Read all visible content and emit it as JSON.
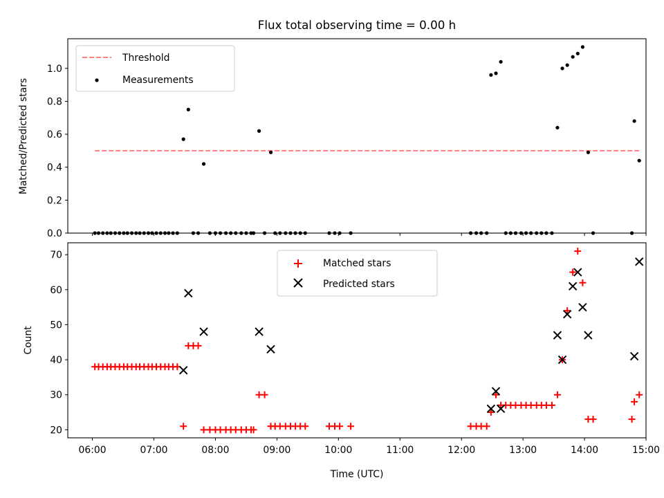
{
  "chart_data": [
    {
      "type": "scatter",
      "title": "Flux total observing time = 0.00 h",
      "xlabel": "",
      "ylabel": "Matched/Predicted stars",
      "xlim": [
        5.6,
        15.0
      ],
      "ylim": [
        0.0,
        1.18
      ],
      "yticks": [
        0.0,
        0.2,
        0.4,
        0.6,
        0.8,
        1.0
      ],
      "ytick_labels": [
        "0.0",
        "0.2",
        "0.4",
        "0.6",
        "0.8",
        "1.0"
      ],
      "threshold": {
        "name": "Threshold",
        "y": 0.5,
        "x": [
          6.04,
          14.9
        ],
        "color": "#ff7f7f",
        "style": "dashed"
      },
      "legend_position": "upper left",
      "series": [
        {
          "name": "Measurements",
          "color": "#000000",
          "marker": "dot",
          "points": [
            [
              6.04,
              0.0
            ],
            [
              6.1,
              0.0
            ],
            [
              6.17,
              0.0
            ],
            [
              6.24,
              0.0
            ],
            [
              6.3,
              0.0
            ],
            [
              6.37,
              0.0
            ],
            [
              6.44,
              0.0
            ],
            [
              6.51,
              0.0
            ],
            [
              6.57,
              0.0
            ],
            [
              6.64,
              0.0
            ],
            [
              6.71,
              0.0
            ],
            [
              6.77,
              0.0
            ],
            [
              6.84,
              0.0
            ],
            [
              6.91,
              0.0
            ],
            [
              6.97,
              0.0
            ],
            [
              7.04,
              0.0
            ],
            [
              7.11,
              0.0
            ],
            [
              7.18,
              0.0
            ],
            [
              7.24,
              0.0
            ],
            [
              7.31,
              0.0
            ],
            [
              7.38,
              0.0
            ],
            [
              7.48,
              0.57
            ],
            [
              7.56,
              0.75
            ],
            [
              7.64,
              0.0
            ],
            [
              7.72,
              0.0
            ],
            [
              7.81,
              0.42
            ],
            [
              7.91,
              0.0
            ],
            [
              8.0,
              0.0
            ],
            [
              8.08,
              0.0
            ],
            [
              8.17,
              0.0
            ],
            [
              8.25,
              0.0
            ],
            [
              8.33,
              0.0
            ],
            [
              8.42,
              0.0
            ],
            [
              8.5,
              0.0
            ],
            [
              8.58,
              0.0
            ],
            [
              8.62,
              0.0
            ],
            [
              8.71,
              0.62
            ],
            [
              8.8,
              0.0
            ],
            [
              8.9,
              0.49
            ],
            [
              8.97,
              0.0
            ],
            [
              9.05,
              0.0
            ],
            [
              9.14,
              0.0
            ],
            [
              9.22,
              0.0
            ],
            [
              9.3,
              0.0
            ],
            [
              9.38,
              0.0
            ],
            [
              9.46,
              0.0
            ],
            [
              9.85,
              0.0
            ],
            [
              9.94,
              0.0
            ],
            [
              10.02,
              0.0
            ],
            [
              10.2,
              0.0
            ],
            [
              12.15,
              0.0
            ],
            [
              12.24,
              0.0
            ],
            [
              12.32,
              0.0
            ],
            [
              12.41,
              0.0
            ],
            [
              12.48,
              0.96
            ],
            [
              12.56,
              0.97
            ],
            [
              12.64,
              1.04
            ],
            [
              12.72,
              0.0
            ],
            [
              12.8,
              0.0
            ],
            [
              12.88,
              0.0
            ],
            [
              12.97,
              0.0
            ],
            [
              13.05,
              0.0
            ],
            [
              13.13,
              0.0
            ],
            [
              13.22,
              0.0
            ],
            [
              13.3,
              0.0
            ],
            [
              13.38,
              0.0
            ],
            [
              13.47,
              0.0
            ],
            [
              13.56,
              0.64
            ],
            [
              13.64,
              1.0
            ],
            [
              13.72,
              1.02
            ],
            [
              13.81,
              1.07
            ],
            [
              13.89,
              1.09
            ],
            [
              13.97,
              1.13
            ],
            [
              14.06,
              0.49
            ],
            [
              14.14,
              0.0
            ],
            [
              14.77,
              0.0
            ],
            [
              14.81,
              0.68
            ],
            [
              14.89,
              0.44
            ]
          ]
        }
      ]
    },
    {
      "type": "scatter",
      "title": "",
      "xlabel": "Time (UTC)",
      "ylabel": "Count",
      "xlim": [
        5.6,
        15.0
      ],
      "ylim": [
        17.7,
        73.4
      ],
      "yticks": [
        20,
        30,
        40,
        50,
        60,
        70
      ],
      "ytick_labels": [
        "20",
        "30",
        "40",
        "50",
        "60",
        "70"
      ],
      "xticks": [
        6,
        7,
        8,
        9,
        10,
        11,
        12,
        13,
        14,
        15
      ],
      "xtick_labels": [
        "06:00",
        "07:00",
        "08:00",
        "09:00",
        "10:00",
        "11:00",
        "12:00",
        "13:00",
        "14:00",
        "15:00"
      ],
      "legend_position": "upper center",
      "series": [
        {
          "name": "Matched stars",
          "color": "#ff0000",
          "marker": "plus",
          "points": [
            [
              6.04,
              38
            ],
            [
              6.1,
              38
            ],
            [
              6.17,
              38
            ],
            [
              6.24,
              38
            ],
            [
              6.3,
              38
            ],
            [
              6.37,
              38
            ],
            [
              6.44,
              38
            ],
            [
              6.51,
              38
            ],
            [
              6.57,
              38
            ],
            [
              6.64,
              38
            ],
            [
              6.71,
              38
            ],
            [
              6.77,
              38
            ],
            [
              6.84,
              38
            ],
            [
              6.91,
              38
            ],
            [
              6.97,
              38
            ],
            [
              7.04,
              38
            ],
            [
              7.11,
              38
            ],
            [
              7.18,
              38
            ],
            [
              7.24,
              38
            ],
            [
              7.31,
              38
            ],
            [
              7.38,
              38
            ],
            [
              7.48,
              21
            ],
            [
              7.56,
              44
            ],
            [
              7.64,
              44
            ],
            [
              7.72,
              44
            ],
            [
              7.81,
              20
            ],
            [
              7.91,
              20
            ],
            [
              8.0,
              20
            ],
            [
              8.08,
              20
            ],
            [
              8.17,
              20
            ],
            [
              8.25,
              20
            ],
            [
              8.33,
              20
            ],
            [
              8.42,
              20
            ],
            [
              8.5,
              20
            ],
            [
              8.58,
              20
            ],
            [
              8.62,
              20
            ],
            [
              8.71,
              30
            ],
            [
              8.8,
              30
            ],
            [
              8.9,
              21
            ],
            [
              8.97,
              21
            ],
            [
              9.05,
              21
            ],
            [
              9.14,
              21
            ],
            [
              9.22,
              21
            ],
            [
              9.3,
              21
            ],
            [
              9.38,
              21
            ],
            [
              9.46,
              21
            ],
            [
              9.85,
              21
            ],
            [
              9.94,
              21
            ],
            [
              10.02,
              21
            ],
            [
              10.2,
              21
            ],
            [
              12.15,
              21
            ],
            [
              12.24,
              21
            ],
            [
              12.32,
              21
            ],
            [
              12.41,
              21
            ],
            [
              12.48,
              25
            ],
            [
              12.56,
              30
            ],
            [
              12.64,
              27
            ],
            [
              12.72,
              27
            ],
            [
              12.8,
              27
            ],
            [
              12.88,
              27
            ],
            [
              12.97,
              27
            ],
            [
              13.05,
              27
            ],
            [
              13.13,
              27
            ],
            [
              13.22,
              27
            ],
            [
              13.3,
              27
            ],
            [
              13.38,
              27
            ],
            [
              13.47,
              27
            ],
            [
              13.56,
              30
            ],
            [
              13.64,
              40
            ],
            [
              13.72,
              54
            ],
            [
              13.81,
              65
            ],
            [
              13.89,
              71
            ],
            [
              13.97,
              62
            ],
            [
              14.06,
              23
            ],
            [
              14.14,
              23
            ],
            [
              14.77,
              23
            ],
            [
              14.81,
              28
            ],
            [
              14.89,
              30
            ]
          ]
        },
        {
          "name": "Predicted stars",
          "color": "#000000",
          "marker": "x",
          "points": [
            [
              7.48,
              37
            ],
            [
              7.56,
              59
            ],
            [
              7.81,
              48
            ],
            [
              8.71,
              48
            ],
            [
              8.9,
              43
            ],
            [
              12.48,
              26
            ],
            [
              12.56,
              31
            ],
            [
              12.64,
              26
            ],
            [
              13.56,
              47
            ],
            [
              13.64,
              40
            ],
            [
              13.72,
              53
            ],
            [
              13.81,
              61
            ],
            [
              13.89,
              65
            ],
            [
              13.97,
              55
            ],
            [
              14.06,
              47
            ],
            [
              14.81,
              41
            ],
            [
              14.89,
              68
            ]
          ]
        }
      ]
    }
  ]
}
